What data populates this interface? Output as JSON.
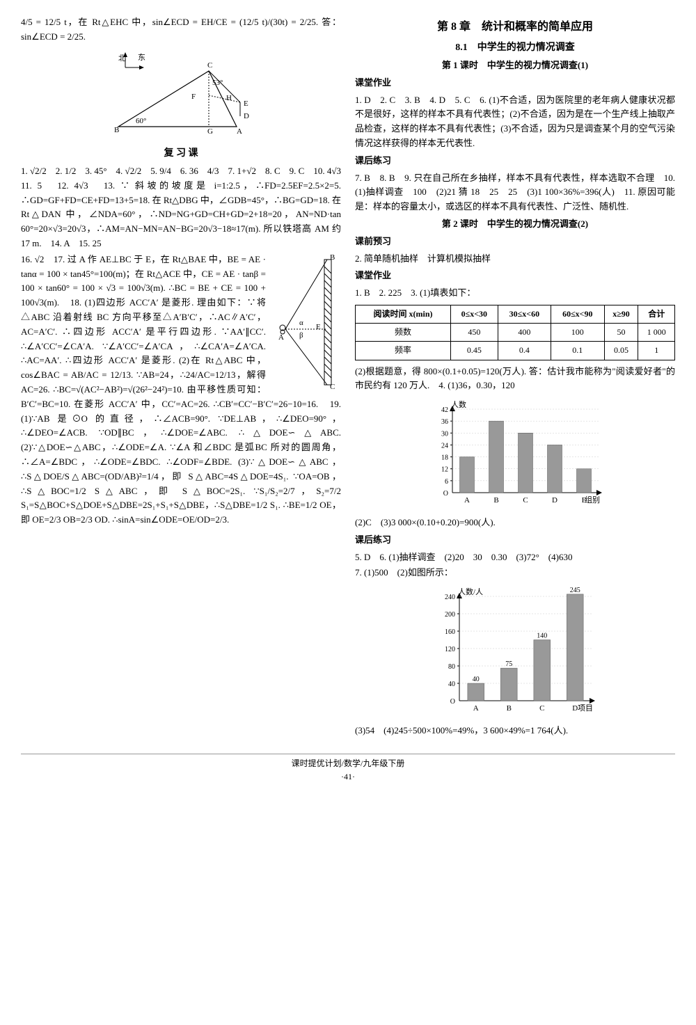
{
  "left": {
    "opening_line": "4/5 = 12/5 t，在 Rt△EHC 中，sin∠ECD = EH/CE = (12/5 t)/(30t) = 2/25. 答：sin∠ECD = 2/25.",
    "diagram1": {
      "north_label": "北",
      "east_label": "东",
      "angle_left": "60°",
      "angle_right": "53°",
      "pts": [
        "B",
        "G",
        "A",
        "C",
        "D",
        "E",
        "F",
        "H"
      ]
    },
    "fuxike_title": "复 习 课",
    "answers1": "1. √2/2　2. 1/2　3. 45°　4. √2/2　5. 9/4　6. 36　4/3　7. 1+√2　8. C　9. C　10. 4√3　11. 5　12. 4√3　13. ∵ 斜坡的坡度是 i=1:2.5，∴FD=2.5EF=2.5×2=5. ∴GD=GF+FD=CE+FD=13+5=18. 在 Rt△DBG 中，∠GDB=45°，∴BG=GD=18. 在 Rt△DAN 中，∠NDA=60°，∴ND=NG+GD=CH+GD=2+18=20，AN=ND·tan 60°=20×√3=20√3，∴AM=AN−MN=AN−BG=20√3−18≈17(m). 所以铁塔高 AM 约 17 m.　14. A　15. 25",
    "q16_17": "16. √2　17. 过 A 作 AE⊥BC 于 E，在 Rt△BAE 中，BE = AE · tanα = 100 × tan45°=100(m)；在 Rt△ACE 中，CE = AE · tanβ = 100 × tan60° = 100 × √3 = 100√3(m). ∴BC = BE + CE = 100 + 100√3(m).　18. (1)四边形 ACC′A′ 是菱形. 理由如下：∵将△ABC 沿着射线 BC 方向平移至△A′B′C′，∴AC∥A′C′，AC=A′C′. ∴四边形 ACC′A′ 是平行四边形. ∵AA′∥CC′. ∴∠A′CC′=∠CA′A. ∵∠A′CC′=∠A′CA，∴∠CA′A=∠A′CA. ∴AC=AA′. ∴四边形 ACC′A′ 是菱形. (2)在 Rt△ABC 中，cos∠BAC = AB/AC = 12/13. ∵AB=24，∴24/AC=12/13，解得 AC=26. ∴BC=√(AC²−AB²)=√(26²−24²)=10. 由平移性质可知：B′C′=BC=10. 在菱形 ACC′A′ 中，CC′=AC=26. ∴CB′=CC′−B′C′=26−10=16.　19. (1)∵AB 是⊙O 的直径，∴∠ACB=90°. ∵DE⊥AB，∴∠DEO=90°，∴∠DEO=∠ACB. ∵OD∥BC，∴∠DOE=∠ABC. ∴△DOE∽△ABC. (2)∵△DOE∽△ABC，∴∠ODE=∠A. ∵∠A 和∠BDC 是弧BC 所对的圆周角，∴∠A=∠BDC，∴∠ODE=∠BDC. ∴∠ODF=∠BDE. (3)∵△DOE∽△ABC，∴S△DOE/S△ABC=(OD/AB)²=1/4，即 S△ABC=4S△DOE=4S₁. ∵OA=OB，∴S△BOC=1/2 S△ABC，即 S△BOC=2S₁. ∵S₁/S₂=2/7，S₂=7/2 S₁=S△BOC+S△DOE+S△DBE=2S₁+S₁+S△DBE，∴S△DBE=1/2 S₁. ∴BE=1/2 OE，即 OE=2/3 OB=2/3 OD. ∴sinA=sin∠ODE=OE/OD=2/3.",
    "diagram2": {
      "pts": [
        "A",
        "B",
        "C",
        "E"
      ],
      "angle_alpha": "α",
      "angle_beta": "β"
    }
  },
  "right": {
    "chapter_title": "第 8 章　统计和概率的简单应用",
    "section_title": "8.1　中学生的视力情况调查",
    "lesson1_title": "第 1 课时　中学生的视力情况调查(1)",
    "ketang_label": "课堂作业",
    "lesson1_ketang": "1. D　2. C　3. B　4. D　5. C　6. (1)不合适，因为医院里的老年病人健康状况都不是很好，这样的样本不具有代表性；(2)不合适，因为是在一个生产线上抽取产品检查，这样的样本不具有代表性；(3)不合适，因为只是调查某个月的空气污染情况这样获得的样本无代表性.",
    "kehou_label": "课后练习",
    "lesson1_kehou": "7. B　8. B　9. 只在自己所在乡抽样，样本不具有代表性，样本选取不合理　10. (1)抽样调查　100　(2)21 猜 18　25　25　(3)1 100×36%=396(人)　11. 原因可能是：样本的容量太小，或选区的样本不具有代表性、广泛性、随机性.",
    "lesson2_title": "第 2 课时　中学生的视力情况调查(2)",
    "keqian_label": "课前预习",
    "lesson2_keqian": "2. 简单随机抽样　计算机模拟抽样",
    "lesson2_ketang_intro": "1. B　2. 225　3. (1)填表如下：",
    "table": {
      "headers": [
        "阅读时间 x(min)",
        "0≤x<30",
        "30≤x<60",
        "60≤x<90",
        "x≥90",
        "合计"
      ],
      "rows": [
        [
          "频数",
          "450",
          "400",
          "100",
          "50",
          "1 000"
        ],
        [
          "频率",
          "0.45",
          "0.4",
          "0.1",
          "0.05",
          "1"
        ]
      ]
    },
    "after_table": "(2)根据题意，得 800×(0.1+0.05)=120(万人). 答：估计我市能称为\"阅读爱好者\"的市民约有 120 万人.　4. (1)36，0.30，120",
    "chart1": {
      "ylabel": "人数",
      "xlabel": "组别",
      "categories": [
        "A",
        "B",
        "C",
        "D",
        "E"
      ],
      "values": [
        18,
        36,
        30,
        24,
        12
      ],
      "ytick_step": 6,
      "ymax": 42,
      "bar_color": "#999999",
      "axis_color": "#000000"
    },
    "after_chart1": "(2)C　(3)3 000×(0.10+0.20)=900(人).",
    "lesson2_kehou_intro": "5. D　6. (1)抽样调查　(2)20　30　0.30　(3)72°　(4)630",
    "q7_intro": "7. (1)500　(2)如图所示：",
    "chart2": {
      "ylabel": "人数/人",
      "xlabel": "项目",
      "categories": [
        "A",
        "B",
        "C",
        "D"
      ],
      "values": [
        40,
        75,
        140,
        245
      ],
      "value_labels": [
        "40",
        "75",
        "140",
        "245"
      ],
      "ytick_step": 40,
      "ymax": 240,
      "bar_color": "#999999",
      "axis_color": "#000000"
    },
    "after_chart2": "(3)54　(4)245÷500×100%=49%，3 600×49%=1 764(人)."
  },
  "footer": {
    "line1": "课时提优计划/数学/九年级下册",
    "page": "·41·"
  }
}
